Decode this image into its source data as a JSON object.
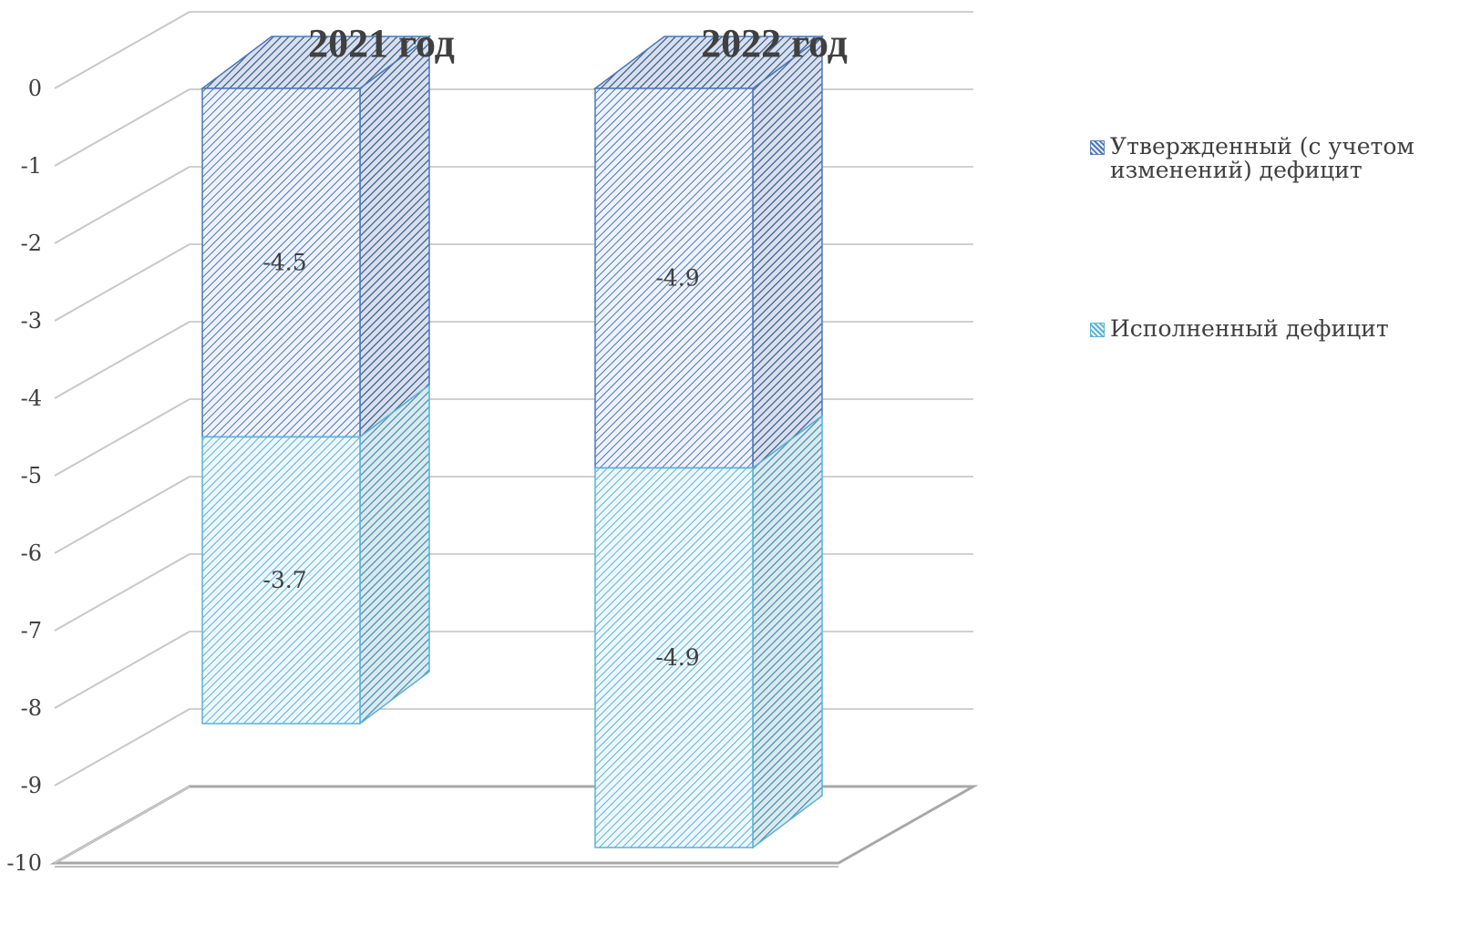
{
  "chart_data": {
    "type": "bar",
    "stacked": true,
    "three_d": true,
    "categories": [
      "2021 год",
      "2022 год"
    ],
    "series": [
      {
        "name": "Утвержденный  (с учетом изменений) дефицит",
        "values": [
          -4.5,
          -4.9
        ],
        "color": "#4a78b8"
      },
      {
        "name": "Исполненный дефицит",
        "values": [
          -3.7,
          -4.9
        ],
        "color": "#5ab2d6"
      }
    ],
    "data_labels": [
      [
        "-4.5",
        "-4.9"
      ],
      [
        "-3.7",
        "-4.9"
      ]
    ],
    "ylim": [
      -10,
      0
    ],
    "yticks": [
      "0",
      "-1",
      "-2",
      "-3",
      "-4",
      "-5",
      "-6",
      "-7",
      "-8",
      "-9",
      "-10"
    ],
    "grid": true,
    "legend_position": "right"
  }
}
